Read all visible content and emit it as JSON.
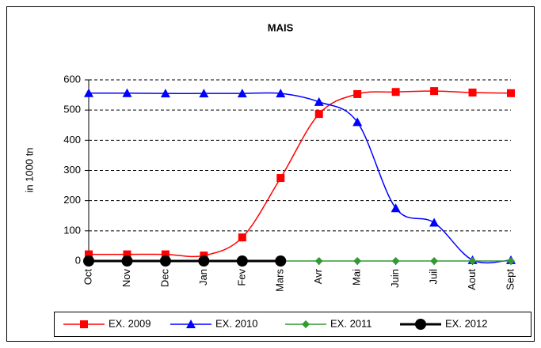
{
  "chart_data": {
    "type": "line",
    "title": "MAIS",
    "y_label": "in 1000 tn",
    "categories": [
      "Oct",
      "Nov",
      "Dec",
      "Jan",
      "Fev",
      "Mars",
      "Avr",
      "Mai",
      "Juin",
      "Juil",
      "Aout",
      "Sept"
    ],
    "series": [
      {
        "name": "EX. 2009",
        "color": "#ff0000",
        "marker": "square",
        "values": [
          22,
          22,
          22,
          18,
          78,
          275,
          487,
          553,
          560,
          563,
          558,
          556
        ]
      },
      {
        "name": "EX. 2010",
        "color": "#0000ff",
        "marker": "triangle",
        "values": [
          556,
          556,
          555,
          555,
          555,
          555,
          527,
          460,
          175,
          127,
          3,
          3
        ]
      },
      {
        "name": "EX. 2011",
        "color": "#339933",
        "marker": "diamond",
        "values": [
          0,
          0,
          0,
          0,
          0,
          0,
          0,
          0,
          0,
          0,
          0,
          0
        ]
      },
      {
        "name": "EX. 2012",
        "color": "#000000",
        "marker": "circle",
        "values": [
          0,
          0,
          0,
          0,
          0,
          0,
          null,
          null,
          null,
          null,
          null,
          null
        ]
      }
    ],
    "ylim": [
      0,
      600
    ],
    "yticks": [
      0,
      100,
      200,
      300,
      400,
      500,
      600
    ],
    "grid": true,
    "legend": "bottom"
  }
}
